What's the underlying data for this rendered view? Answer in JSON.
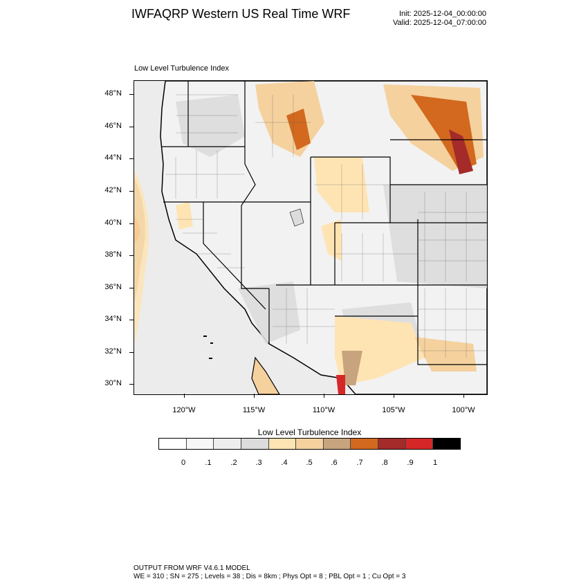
{
  "header": {
    "title": "IWFAQRP Western US Real Time WRF",
    "init": "Init: 2025-12-04_00:00:00",
    "valid": "Valid: 2025-12-04_07:00:00"
  },
  "plot": {
    "subtitle": "Low Level Turbulence Index",
    "lat_labels": [
      "48°N",
      "46°N",
      "44°N",
      "42°N",
      "40°N",
      "38°N",
      "36°N",
      "34°N",
      "32°N",
      "30°N"
    ],
    "lon_labels": [
      "120°W",
      "115°W",
      "110°W",
      "105°W",
      "100°W"
    ]
  },
  "colorbar": {
    "title": "Low Level Turbulence Index",
    "labels": [
      "0",
      ".1",
      ".2",
      ".3",
      ".4",
      ".5",
      ".6",
      ".7",
      ".8",
      ".9",
      "1"
    ],
    "colors": [
      "#ffffff",
      "#f7f7f7",
      "#ededed",
      "#dcdcdc",
      "#ffe4b3",
      "#f5d19e",
      "#c8a47e",
      "#d2691e",
      "#a52a2a",
      "#d62728",
      "#000000"
    ]
  },
  "footer": {
    "line1": "OUTPUT FROM WRF V4.6.1 MODEL",
    "line2": "WE = 310 ; SN = 275 ; Levels = 38 ; Dis = 8km ; Phys Opt = 8 ; PBL Opt = 1 ; Cu Opt = 3"
  }
}
